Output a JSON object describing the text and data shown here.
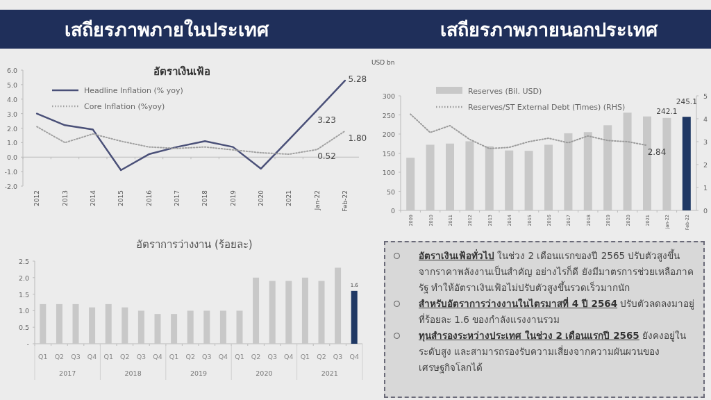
{
  "chart_data": [
    {
      "type": "line",
      "title": "เสถียรภาพภายในประเทศ",
      "subtitle": "อัตราเงินเฟ้อ",
      "categories": [
        "2012",
        "2013",
        "2014",
        "2015",
        "2016",
        "2017",
        "2018",
        "2019",
        "2020",
        "2021",
        "Jan-22",
        "Feb-22"
      ],
      "series": [
        {
          "name": "Headline Inflation (% yoy)",
          "color": "#4a5078",
          "values": [
            3.0,
            2.2,
            1.9,
            -0.9,
            0.2,
            0.7,
            1.1,
            0.7,
            -0.8,
            1.2,
            3.23,
            5.28
          ],
          "value_labels": [
            null,
            null,
            null,
            null,
            null,
            null,
            null,
            null,
            null,
            null,
            "3.23",
            "5.28"
          ]
        },
        {
          "name": "Core Inflation (%yoy)",
          "color": "#a0a0a0",
          "line_style": "dotted",
          "values": [
            2.1,
            1.0,
            1.6,
            1.1,
            0.7,
            0.6,
            0.7,
            0.5,
            0.3,
            0.2,
            0.52,
            1.8
          ],
          "value_labels": [
            null,
            null,
            null,
            null,
            null,
            null,
            null,
            null,
            null,
            null,
            "0.52",
            "1.80"
          ]
        }
      ],
      "ylim": [
        -2,
        6
      ],
      "yticks": [
        {
          "value": -2,
          "label": "-2.0"
        },
        {
          "value": -1,
          "label": "-1.0"
        },
        {
          "value": 0,
          "label": "0.0"
        },
        {
          "value": 1,
          "label": "1.0"
        },
        {
          "value": 2,
          "label": "2.0"
        },
        {
          "value": 3,
          "label": "3.0"
        },
        {
          "value": 4,
          "label": "4.0"
        },
        {
          "value": 5,
          "label": "5.0"
        },
        {
          "value": 6,
          "label": "6.0"
        }
      ],
      "legend": "top"
    },
    {
      "type": "bar",
      "title": "เสถียรภาพภายนอกประเทศ",
      "ylabel": "USD bn",
      "categories": [
        "2009",
        "2010",
        "2011",
        "2012",
        "2013",
        "2014",
        "2015",
        "2016",
        "2017",
        "2018",
        "2019",
        "2020",
        "2021",
        "Jan-22",
        "Feb-22"
      ],
      "series": [
        {
          "name": "Reserves (Bil. USD)",
          "color": "#c8c8c8",
          "colors": [
            "#c8c8c8",
            "#c8c8c8",
            "#c8c8c8",
            "#c8c8c8",
            "#c8c8c8",
            "#c8c8c8",
            "#c8c8c8",
            "#c8c8c8",
            "#c8c8c8",
            "#c8c8c8",
            "#c8c8c8",
            "#c8c8c8",
            "#c8c8c8",
            "#c8c8c8",
            "#1f3864"
          ],
          "values": [
            138,
            172,
            175,
            181,
            168,
            157,
            156,
            172,
            202,
            205,
            223,
            256,
            246,
            242.1,
            245.1
          ],
          "value_labels": [
            null,
            null,
            null,
            null,
            null,
            null,
            null,
            null,
            null,
            null,
            null,
            null,
            null,
            "242.1",
            "245.1"
          ]
        },
        {
          "name": "Reserves/ST External Debt (Times) (RHS)",
          "type": "line",
          "axis": "y2",
          "line_style": "dotted",
          "color": "#9a9a9a",
          "values": [
            4.2,
            3.4,
            3.7,
            3.1,
            2.7,
            2.75,
            3.0,
            3.15,
            2.95,
            3.25,
            3.05,
            3.0,
            2.84,
            null,
            null
          ],
          "value_labels": [
            null,
            null,
            null,
            null,
            null,
            null,
            null,
            null,
            null,
            null,
            null,
            null,
            "2.84",
            null,
            null
          ]
        }
      ],
      "ylim": [
        0,
        300
      ],
      "yticks": [
        0,
        50,
        100,
        150,
        200,
        250,
        300
      ],
      "y2lim": [
        0,
        5
      ],
      "y2ticks": [
        0,
        1,
        2,
        3,
        4,
        5
      ],
      "legend": "top left"
    },
    {
      "type": "bar",
      "title": "อัตราการว่างงาน (ร้อยละ)",
      "categories": [
        "Q1",
        "Q2",
        "Q3",
        "Q4",
        "Q1",
        "Q2",
        "Q3",
        "Q4",
        "Q1",
        "Q2",
        "Q3",
        "Q4",
        "Q1",
        "Q2",
        "Q3",
        "Q4",
        "Q1",
        "Q2",
        "Q3",
        "Q4"
      ],
      "values": [
        1.2,
        1.2,
        1.2,
        1.1,
        1.2,
        1.1,
        1.0,
        0.9,
        0.9,
        1.0,
        1.0,
        1.0,
        1.0,
        2.0,
        1.9,
        1.9,
        2.0,
        1.9,
        2.3,
        1.6
      ],
      "colors": [
        "#c8c8c8",
        "#c8c8c8",
        "#c8c8c8",
        "#c8c8c8",
        "#c8c8c8",
        "#c8c8c8",
        "#c8c8c8",
        "#c8c8c8",
        "#c8c8c8",
        "#c8c8c8",
        "#c8c8c8",
        "#c8c8c8",
        "#c8c8c8",
        "#c8c8c8",
        "#c8c8c8",
        "#c8c8c8",
        "#c8c8c8",
        "#c8c8c8",
        "#c8c8c8",
        "#1f3864"
      ],
      "value_labels": [
        null,
        null,
        null,
        null,
        null,
        null,
        null,
        null,
        null,
        null,
        null,
        null,
        null,
        null,
        null,
        null,
        null,
        null,
        null,
        "1.6"
      ],
      "ylim": [
        0,
        2.5
      ],
      "yticks": [
        {
          "value": 0,
          "label": "-"
        },
        {
          "value": 0.5,
          "label": "0.5"
        },
        {
          "value": 1,
          "label": "1.0"
        },
        {
          "value": 1.5,
          "label": "1.5"
        },
        {
          "value": 2,
          "label": "2.0"
        },
        {
          "value": 2.5,
          "label": "2.5"
        }
      ],
      "annotations": [
        "2017",
        "2018",
        "2019",
        "2020",
        "2021"
      ]
    },
    {
      "type": "other",
      "annotations": [
        "**อัตราเงินเฟ้อทั่วไป** ในช่วง 2 เดือนแรกของปี 2565 ปรับตัวสูงขึ้นจากราคาพลังงานเป็นสำคัญ อย่างไรก็ดี ยังมีมาตรการช่วยเหลือภาครัฐ ทำให้อัตราเงินเฟ้อไม่ปรับตัวสูงขึ้นรวดเร็วมากนัก",
        "**สำหรับอัตราการว่างงานในไตรมาสที่ 4 ปี 2564** ปรับตัวลดลงมาอยู่ที่ร้อยละ 1.6 ของกำลังแรงงานรวม",
        "**ทุนสำรองระหว่างประเทศ ในช่วง 2 เดือนแรกปี 2565** ยังคงอยู่ในระดับสูง และสามารถรองรับความเสี่ยงจากความผันผวนของเศรษฐกิจโลกได้"
      ]
    }
  ]
}
